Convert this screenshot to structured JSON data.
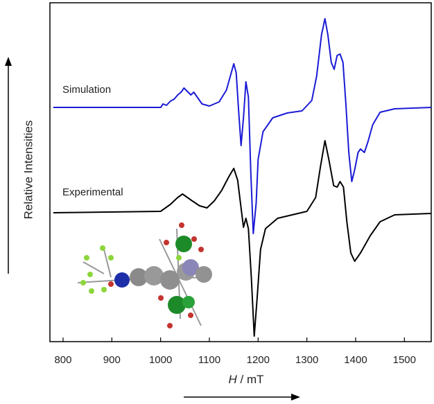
{
  "chart_data": {
    "type": "line",
    "xlabel": "H / mT",
    "ylabel": "Relative Intensities",
    "xlim": [
      773,
      1555
    ],
    "xticks": [
      800,
      900,
      1000,
      1100,
      1200,
      1300,
      1400,
      1500
    ],
    "ylim": [
      0,
      489
    ],
    "series": [
      {
        "name": "Simulation",
        "color": "#1a1ad6",
        "x": [
          780,
          1000,
          1005,
          1012,
          1020,
          1028,
          1035,
          1042,
          1048,
          1055,
          1062,
          1068,
          1075,
          1085,
          1100,
          1120,
          1135,
          1145,
          1150,
          1155,
          1160,
          1165,
          1170,
          1175,
          1180,
          1185,
          1190,
          1196,
          1200,
          1210,
          1230,
          1260,
          1290,
          1310,
          1320,
          1330,
          1337,
          1343,
          1350,
          1356,
          1362,
          1368,
          1374,
          1380,
          1386,
          1392,
          1398,
          1405,
          1410,
          1418,
          1425,
          1435,
          1450,
          1480,
          1555
        ],
        "values": [
          338,
          338,
          343,
          341,
          347,
          350,
          356,
          360,
          366,
          361,
          356,
          360,
          353,
          343,
          340,
          346,
          363,
          388,
          401,
          388,
          333,
          283,
          323,
          375,
          353,
          243,
          156,
          200,
          263,
          303,
          323,
          330,
          333,
          348,
          383,
          443,
          466,
          443,
          403,
          393,
          413,
          415,
          403,
          343,
          273,
          231,
          248,
          273,
          278,
          273,
          288,
          313,
          331,
          336,
          338
        ]
      },
      {
        "name": "Experimental",
        "color": "#000000",
        "x": [
          780,
          1000,
          1020,
          1035,
          1045,
          1055,
          1065,
          1080,
          1095,
          1110,
          1125,
          1140,
          1150,
          1158,
          1165,
          1170,
          1175,
          1180,
          1186,
          1192,
          1198,
          1205,
          1215,
          1240,
          1270,
          1300,
          1318,
          1328,
          1337,
          1345,
          1355,
          1362,
          1368,
          1375,
          1382,
          1390,
          1398,
          1410,
          1430,
          1450,
          1480,
          1555
        ],
        "values": [
          186,
          188,
          198,
          208,
          213,
          208,
          203,
          196,
          193,
          203,
          218,
          238,
          250,
          233,
          193,
          165,
          178,
          163,
          93,
          8,
          63,
          133,
          163,
          178,
          183,
          188,
          208,
          253,
          290,
          263,
          225,
          223,
          231,
          223,
          173,
          128,
          116,
          128,
          153,
          173,
          183,
          185
        ]
      }
    ]
  }
}
